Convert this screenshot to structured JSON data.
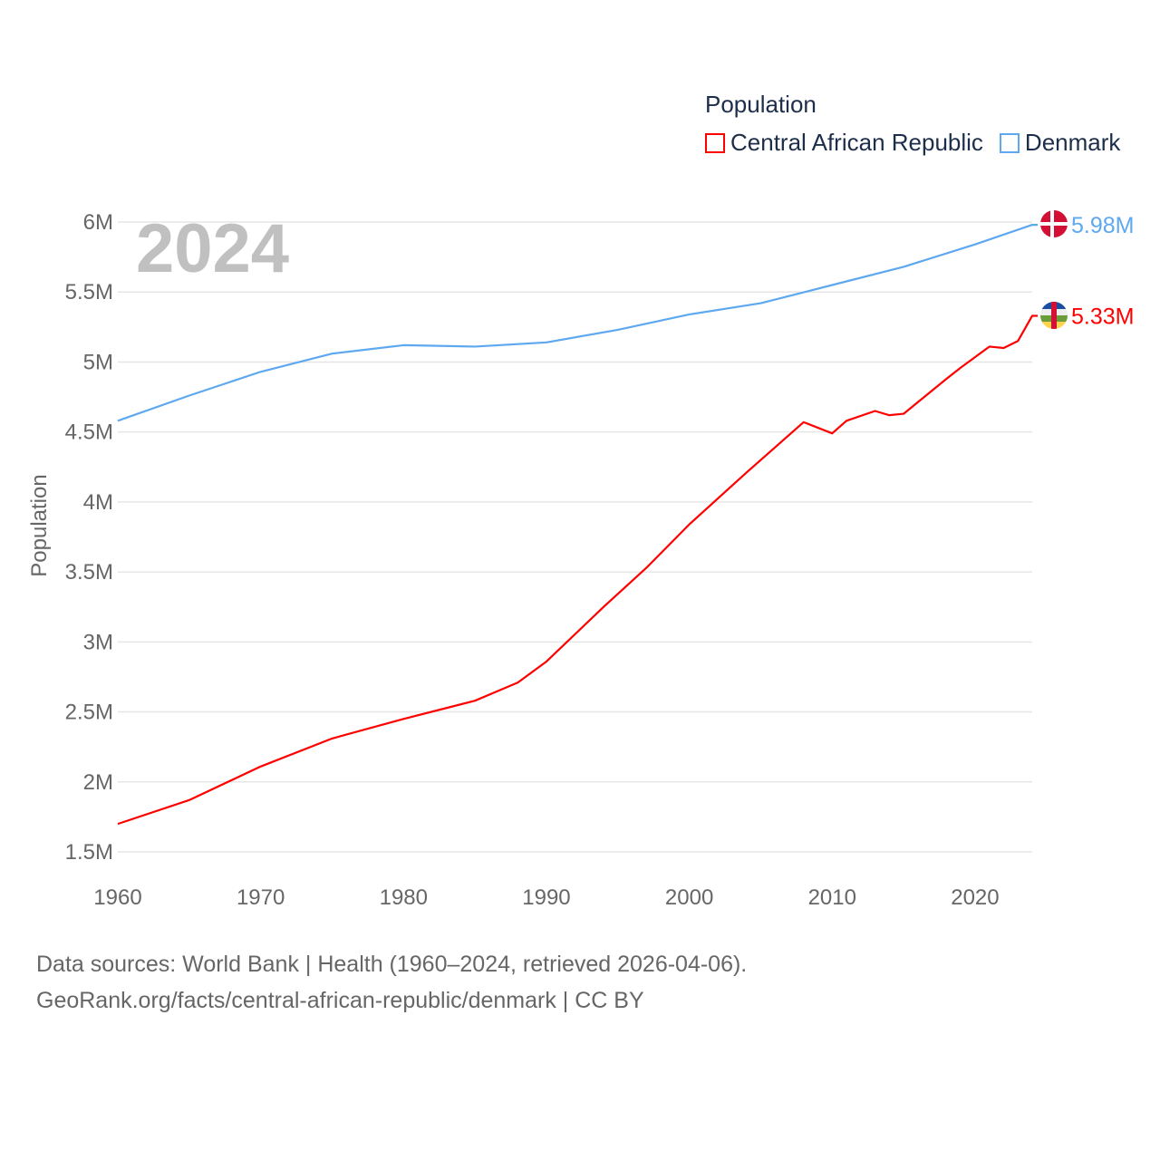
{
  "chart_data": {
    "type": "line",
    "legend_title": "Population",
    "ylabel": "Population",
    "xlabel": "",
    "year_label": "2024",
    "ylim": [
      1.5,
      6
    ],
    "xlim": [
      1960,
      2024
    ],
    "yticks": [
      {
        "v": 1.5,
        "label": "1.5M"
      },
      {
        "v": 2,
        "label": "2M"
      },
      {
        "v": 2.5,
        "label": "2.5M"
      },
      {
        "v": 3,
        "label": "3M"
      },
      {
        "v": 3.5,
        "label": "3.5M"
      },
      {
        "v": 4,
        "label": "4M"
      },
      {
        "v": 4.5,
        "label": "4.5M"
      },
      {
        "v": 5,
        "label": "5M"
      },
      {
        "v": 5.5,
        "label": "5.5M"
      },
      {
        "v": 6,
        "label": "6M"
      }
    ],
    "xticks": [
      {
        "v": 1960,
        "label": "1960"
      },
      {
        "v": 1970,
        "label": "1970"
      },
      {
        "v": 1980,
        "label": "1980"
      },
      {
        "v": 1990,
        "label": "1990"
      },
      {
        "v": 2000,
        "label": "2000"
      },
      {
        "v": 2010,
        "label": "2010"
      },
      {
        "v": 2020,
        "label": "2020"
      }
    ],
    "series": [
      {
        "name": "Central African Republic",
        "color": "#ff0000",
        "end_label": "5.33M",
        "x": [
          1960,
          1965,
          1970,
          1975,
          1980,
          1985,
          1988,
          1990,
          1994,
          1997,
          2000,
          2004,
          2008,
          2010,
          2011,
          2013,
          2014,
          2015,
          2018,
          2019,
          2021,
          2022,
          2023,
          2024
        ],
        "y": [
          1.7,
          1.87,
          2.11,
          2.31,
          2.45,
          2.58,
          2.71,
          2.86,
          3.25,
          3.53,
          3.84,
          4.21,
          4.57,
          4.49,
          4.58,
          4.65,
          4.62,
          4.63,
          4.88,
          4.96,
          5.11,
          5.1,
          5.15,
          5.33
        ]
      },
      {
        "name": "Denmark",
        "color": "#5ea8f0",
        "end_label": "5.98M",
        "x": [
          1960,
          1965,
          1970,
          1975,
          1980,
          1985,
          1990,
          1995,
          2000,
          2005,
          2010,
          2015,
          2020,
          2024
        ],
        "y": [
          4.58,
          4.76,
          4.93,
          5.06,
          5.12,
          5.11,
          5.14,
          5.23,
          5.34,
          5.42,
          5.55,
          5.68,
          5.84,
          5.98
        ]
      }
    ]
  },
  "footer": {
    "line1": "Data sources: World Bank | Health (1960–2024, retrieved 2026-04-06).",
    "line2": "GeoRank.org/facts/central-african-republic/denmark | CC BY"
  }
}
